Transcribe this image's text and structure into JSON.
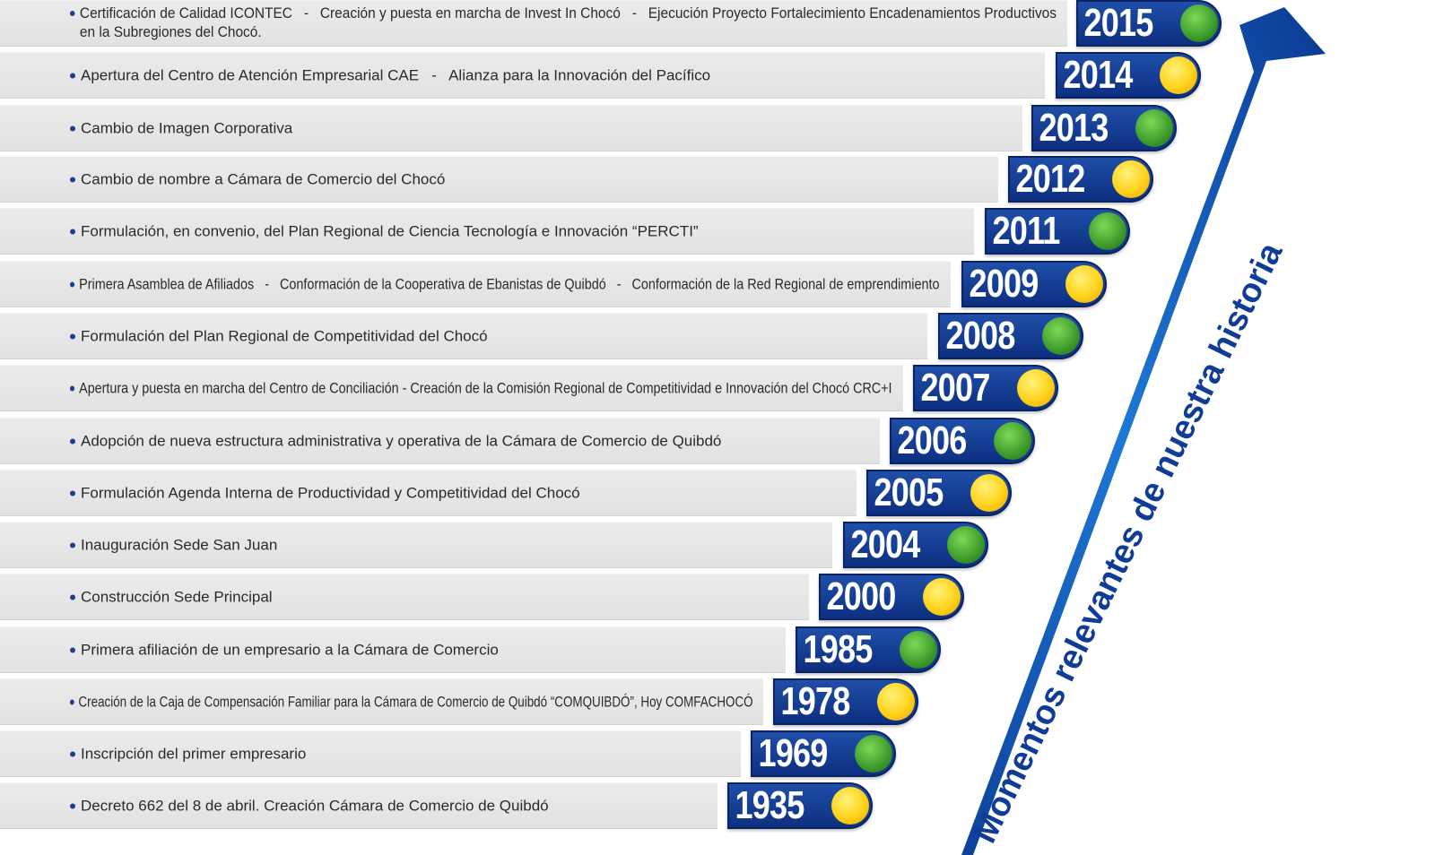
{
  "milestones": [
    {
      "year": "2015",
      "ball": "green",
      "lines": [
        "Certificación de Calidad ICONTEC   -   Creación y puesta en marcha de Invest In Chocó   -   Ejecución Proyecto Fortalecimiento Encadenamientos Productivos",
        "en la Subregiones del Chocó."
      ]
    },
    {
      "year": "2014",
      "ball": "yellow",
      "lines": [
        "Apertura del Centro de Atención Empresarial CAE   -   Alianza para la Innovación del Pacífico"
      ]
    },
    {
      "year": "2013",
      "ball": "green",
      "lines": [
        "Cambio de Imagen Corporativa"
      ]
    },
    {
      "year": "2012",
      "ball": "yellow",
      "lines": [
        "Cambio de nombre a Cámara de Comercio del Chocó"
      ]
    },
    {
      "year": "2011",
      "ball": "green",
      "lines": [
        "Formulación, en convenio, del Plan Regional de Ciencia Tecnología e Innovación “PERCTI”"
      ]
    },
    {
      "year": "2009",
      "ball": "yellow",
      "lines": [
        "Primera Asamblea de Afiliados   -   Conformación de la Cooperativa de Ebanistas de Quibdó   -   Conformación de la Red Regional de emprendimiento"
      ]
    },
    {
      "year": "2008",
      "ball": "green",
      "lines": [
        "Formulación del Plan Regional de Competitividad del Chocó"
      ]
    },
    {
      "year": "2007",
      "ball": "yellow",
      "lines": [
        "Apertura y puesta en marcha del Centro de Conciliación - Creación de la Comisión Regional de Competitividad e Innovación del Chocó CRC+I"
      ]
    },
    {
      "year": "2006",
      "ball": "green",
      "lines": [
        "Adopción de nueva estructura administrativa y operativa de la Cámara de Comercio de Quibdó"
      ]
    },
    {
      "year": "2005",
      "ball": "yellow",
      "lines": [
        "Formulación Agenda Interna de Productividad y Competitividad del Chocó"
      ]
    },
    {
      "year": "2004",
      "ball": "green",
      "lines": [
        "Inauguración Sede San Juan"
      ]
    },
    {
      "year": "2000",
      "ball": "yellow",
      "lines": [
        "Construcción Sede Principal"
      ]
    },
    {
      "year": "1985",
      "ball": "green",
      "lines": [
        "Primera afiliación de un empresario a la Cámara de Comercio"
      ]
    },
    {
      "year": "1978",
      "ball": "yellow",
      "lines": [
        "Creación de la Caja de Compensación Familiar para la Cámara de Comercio de Quibdó “COMQUIBDÓ”, Hoy COMFACHOCÓ"
      ]
    },
    {
      "year": "1969",
      "ball": "green",
      "lines": [
        "Inscripción del primer empresario"
      ]
    },
    {
      "year": "1935",
      "ball": "yellow",
      "lines": [
        "Decreto 662 del 8 de abril. Creación Cámara de Comercio de Quibdó"
      ]
    }
  ],
  "arrow": {
    "label": "Momentos relevantes de nuestra historia"
  },
  "colors": {
    "bar": "#e6e6e6",
    "year_box": "#1a4499",
    "arrow": "#1258b8",
    "text": "#2a2a2a",
    "ball_green": "#3c9a2a",
    "ball_yellow": "#ffd21a"
  }
}
